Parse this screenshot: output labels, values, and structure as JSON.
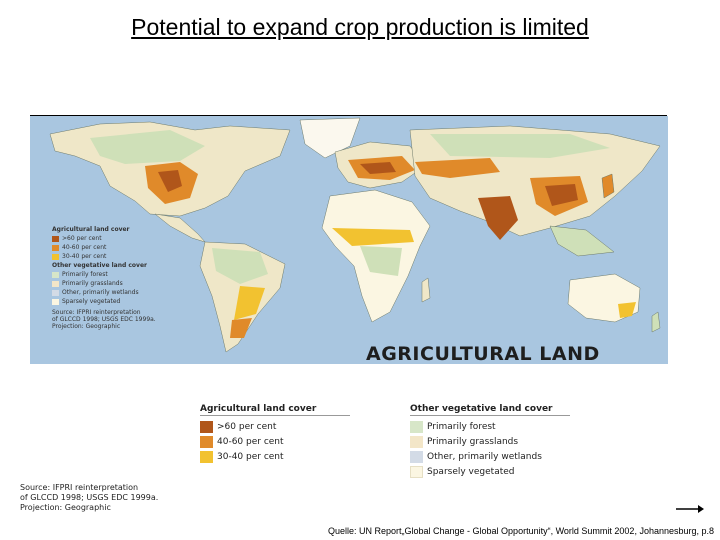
{
  "title": "Potential to expand crop production is limited",
  "map": {
    "title": "AGRICULTURAL LAND",
    "inset_legend": {
      "agri_header": "Agricultural land cover",
      "agri_items": [
        {
          "label": ">60 per cent",
          "color": "#b0561a"
        },
        {
          "label": "40-60 per cent",
          "color": "#e08a2a"
        },
        {
          "label": "30-40 per cent",
          "color": "#f2c230"
        }
      ],
      "veg_header": "Other vegetative land cover",
      "veg_items": [
        {
          "label": "Primarily forest",
          "color": "#d7e6c8"
        },
        {
          "label": "Primarily grasslands",
          "color": "#f3e6c8"
        },
        {
          "label": "Other, primarily wetlands",
          "color": "#d3dbe6"
        },
        {
          "label": "Sparsely vegetated",
          "color": "#fbf6e2"
        }
      ],
      "source": [
        "Source: IFPRI reinterpretation",
        "of GLCCD 1998; USGS EDC 1999a.",
        "Projection: Geographic"
      ]
    }
  },
  "legend": {
    "agri_header": "Agricultural land cover",
    "agri_items": [
      {
        "label": ">60 per cent",
        "color": "#b0561a"
      },
      {
        "label": "40-60 per cent",
        "color": "#e08a2a"
      },
      {
        "label": "30-40 per cent",
        "color": "#f2c230"
      }
    ],
    "veg_header": "Other vegetative land cover",
    "veg_items": [
      {
        "label": "Primarily forest",
        "color": "#d7e6c8"
      },
      {
        "label": "Primarily grasslands",
        "color": "#f3e6c8"
      },
      {
        "label": "Other, primarily wetlands",
        "color": "#d3dbe6"
      },
      {
        "label": "Sparsely vegetated",
        "color": "#fbf6e2"
      }
    ]
  },
  "source_note": [
    "Source: IFPRI reinterpretation",
    "of GLCCD 1998; USGS EDC 1999a.",
    "Projection: Geographic"
  ],
  "citation": "Quelle: UN Report„Global Change - Global Opportunity“, World Summit 2002, Johannesburg,  p.8",
  "colors": {
    "ocean": "#a9c6e0",
    "land": "#efe7c8",
    "forest": "#cfe0b8",
    "high": "#b0561a",
    "mid": "#e08a2a",
    "low": "#f2c230"
  }
}
